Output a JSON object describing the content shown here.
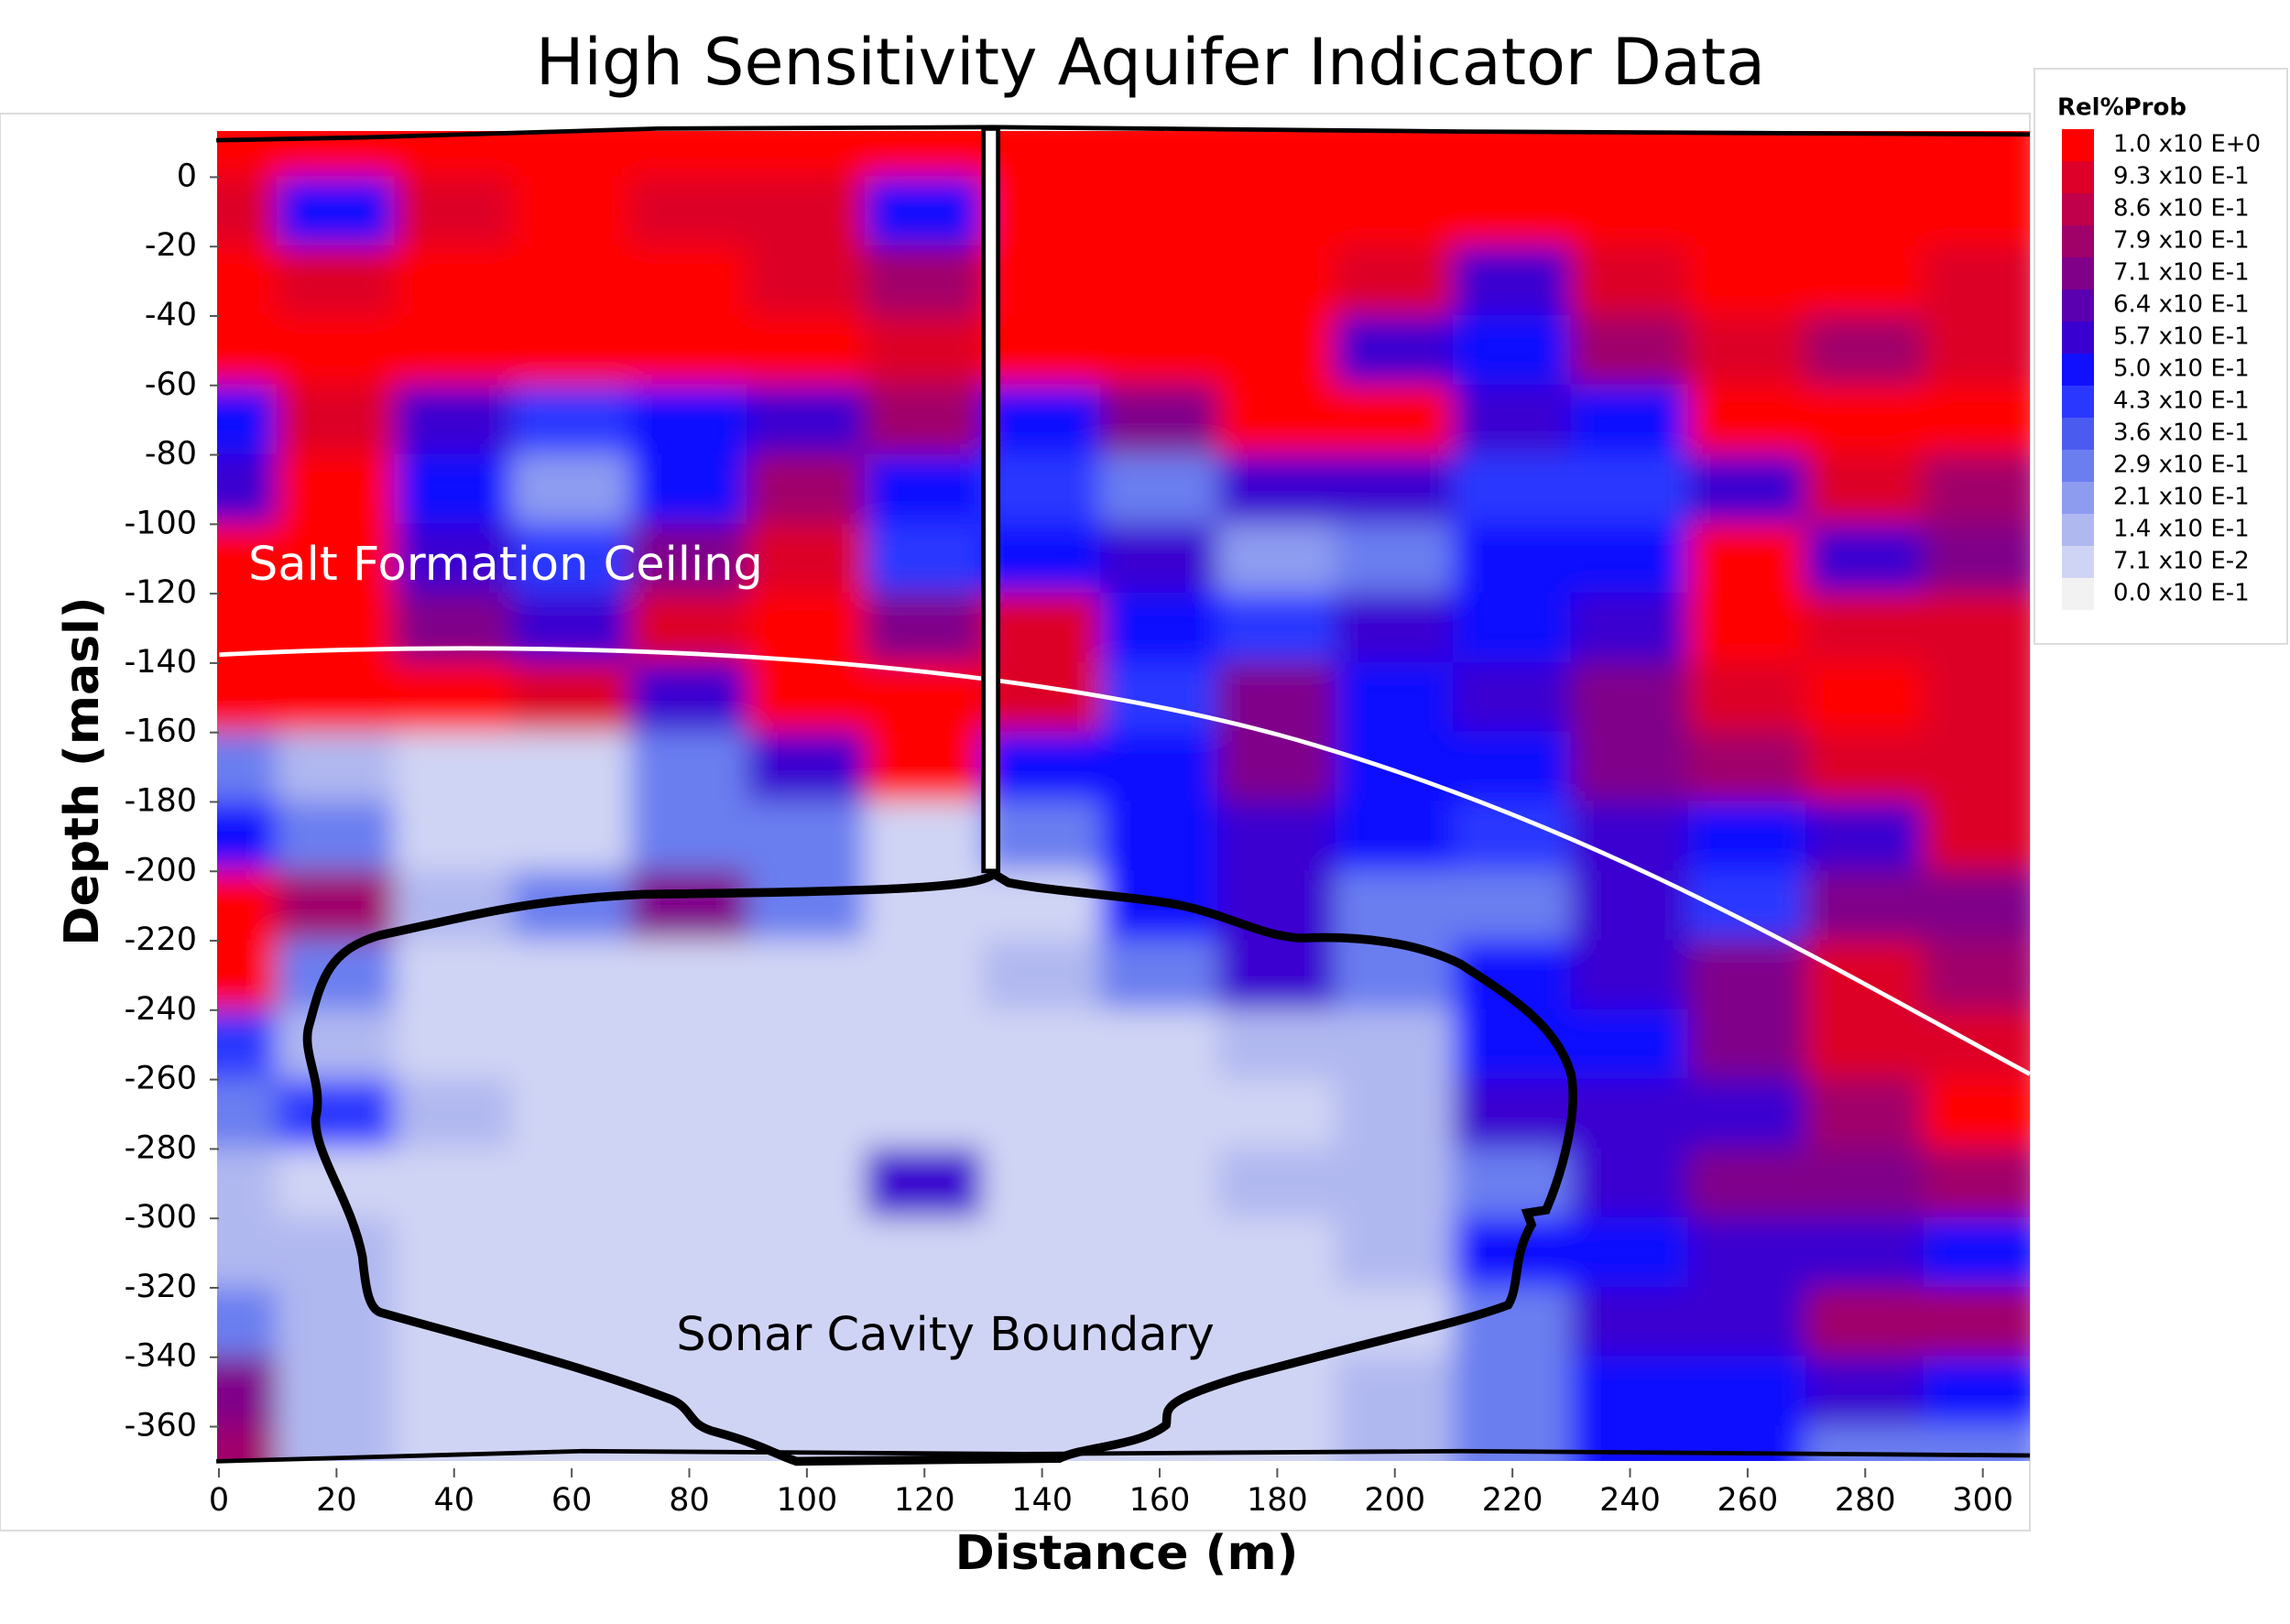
{
  "chart_data": {
    "type": "contour",
    "title": "High Sensitivity Aquifer Indicator Data",
    "x_label": "Distance (m)",
    "y_label": "Depth (masl)",
    "xlim": [
      0,
      308
    ],
    "ylim": [
      -372,
      17
    ],
    "xticks": [
      0,
      20,
      40,
      60,
      80,
      100,
      120,
      140,
      160,
      180,
      200,
      220,
      240,
      260,
      280,
      300
    ],
    "yticks": [
      0,
      -20,
      -40,
      -60,
      -80,
      -100,
      -120,
      -140,
      -160,
      -180,
      -200,
      -220,
      -240,
      -260,
      -280,
      -300,
      -320,
      -340,
      -360
    ],
    "x": [
      0,
      20,
      40,
      60,
      80,
      100,
      120,
      140,
      160,
      180,
      200,
      220,
      240,
      260,
      280,
      300
    ],
    "y": [
      10,
      -10,
      -30,
      -50,
      -70,
      -90,
      -110,
      -130,
      -150,
      -170,
      -190,
      -210,
      -230,
      -250,
      -270,
      -290,
      -310,
      -330,
      -350,
      -370
    ],
    "z": [
      [
        1,
        1,
        1,
        1,
        1,
        1,
        1,
        1,
        1,
        1,
        1,
        1,
        1,
        1,
        1,
        1
      ],
      [
        0.9,
        0.5,
        0.9,
        1,
        0.9,
        0.9,
        0.5,
        1,
        1,
        1,
        1,
        1,
        1,
        1,
        1,
        1
      ],
      [
        1,
        0.9,
        1,
        1,
        1,
        0.9,
        0.8,
        1,
        1,
        1,
        0.9,
        0.6,
        0.9,
        1,
        1,
        0.9
      ],
      [
        1,
        1,
        1,
        1,
        1,
        1,
        0.9,
        1,
        1,
        1,
        0.6,
        0.5,
        0.8,
        0.9,
        0.8,
        0.9
      ],
      [
        0.5,
        0.9,
        0.6,
        0.4,
        0.5,
        0.6,
        0.8,
        0.5,
        0.7,
        1,
        1,
        0.6,
        0.5,
        1,
        1,
        1
      ],
      [
        0.6,
        1,
        0.5,
        0.2,
        0.5,
        0.8,
        0.5,
        0.4,
        0.3,
        0.6,
        0.6,
        0.4,
        0.4,
        0.6,
        0.9,
        0.8
      ],
      [
        1,
        1,
        0.6,
        0.4,
        0.7,
        0.9,
        0.4,
        0.5,
        0.6,
        0.2,
        0.3,
        0.5,
        0.5,
        1,
        0.6,
        0.7
      ],
      [
        1,
        1,
        0.7,
        0.6,
        0.9,
        1,
        0.7,
        0.9,
        0.5,
        0.4,
        0.6,
        0.5,
        0.6,
        1,
        0.9,
        0.9
      ],
      [
        1,
        1,
        1,
        0.9,
        0.6,
        1,
        1,
        0.9,
        0.4,
        0.7,
        0.5,
        0.6,
        0.7,
        0.9,
        1,
        0.9
      ],
      [
        0.3,
        0.14,
        0.07,
        0.07,
        0.3,
        0.6,
        1,
        0.5,
        0.5,
        0.7,
        0.5,
        0.5,
        0.7,
        0.8,
        0.9,
        0.9
      ],
      [
        0.5,
        0.3,
        0.07,
        0.07,
        0.3,
        0.3,
        0.1,
        0.3,
        0.5,
        0.6,
        0.5,
        0.4,
        0.6,
        0.5,
        0.6,
        0.9
      ],
      [
        1,
        0.8,
        0.14,
        0.3,
        0.7,
        0.3,
        0.07,
        0.1,
        0.5,
        0.6,
        0.3,
        0.3,
        0.6,
        0.4,
        0.7,
        0.7
      ],
      [
        1,
        0.3,
        0.07,
        0.07,
        0.1,
        0.07,
        0.07,
        0.14,
        0.3,
        0.6,
        0.3,
        0.5,
        0.6,
        0.7,
        0.9,
        0.8
      ],
      [
        0.4,
        0.14,
        0.07,
        0.07,
        0.07,
        0.07,
        0.07,
        0.07,
        0.1,
        0.14,
        0.14,
        0.5,
        0.5,
        0.7,
        0.9,
        0.9
      ],
      [
        0.3,
        0.4,
        0.14,
        0.07,
        0.07,
        0.07,
        0.07,
        0.07,
        0.07,
        0.07,
        0.14,
        0.6,
        0.6,
        0.6,
        0.8,
        1
      ],
      [
        0.14,
        0.07,
        0.07,
        0.07,
        0.07,
        0.07,
        0.6,
        0.07,
        0.07,
        0.14,
        0.14,
        0.3,
        0.6,
        0.7,
        0.7,
        0.8
      ],
      [
        0.14,
        0.14,
        0.07,
        0.07,
        0.07,
        0.07,
        0.07,
        0.07,
        0.07,
        0.07,
        0.14,
        0.5,
        0.5,
        0.6,
        0.6,
        0.5
      ],
      [
        0.3,
        0.14,
        0.07,
        0.07,
        0.07,
        0.07,
        0.07,
        0.07,
        0.07,
        0.07,
        0.07,
        0.3,
        0.6,
        0.6,
        0.8,
        0.8
      ],
      [
        0.7,
        0.14,
        0.07,
        0.07,
        0.07,
        0.07,
        0.07,
        0.07,
        0.07,
        0.07,
        0.14,
        0.3,
        0.5,
        0.5,
        0.6,
        0.5
      ],
      [
        0.8,
        0.14,
        0.07,
        0.07,
        0.07,
        0.07,
        0.07,
        0.07,
        0.07,
        0.07,
        0.14,
        0.3,
        0.5,
        0.5,
        0.3,
        0.3
      ]
    ],
    "legend_title": "Rel%Prob",
    "levels": [
      {
        "value": 1.0,
        "label": "1.0 x10 E+0",
        "color": "#ff0000"
      },
      {
        "value": 0.93,
        "label": "9.3 x10 E-1",
        "color": "#dd0028"
      },
      {
        "value": 0.86,
        "label": "8.6 x10 E-1",
        "color": "#c0004a"
      },
      {
        "value": 0.79,
        "label": "7.9 x10 E-1",
        "color": "#a0006a"
      },
      {
        "value": 0.71,
        "label": "7.1 x10 E-1",
        "color": "#80008a"
      },
      {
        "value": 0.64,
        "label": "6.4 x10 E-1",
        "color": "#5a00b0"
      },
      {
        "value": 0.57,
        "label": "5.7 x10 E-1",
        "color": "#3a00d0"
      },
      {
        "value": 0.5,
        "label": "5.0 x10 E-1",
        "color": "#1010ff"
      },
      {
        "value": 0.43,
        "label": "4.3 x10 E-1",
        "color": "#2a38ff"
      },
      {
        "value": 0.36,
        "label": "3.6 x10 E-1",
        "color": "#4a5cf0"
      },
      {
        "value": 0.29,
        "label": "2.9 x10 E-1",
        "color": "#6a7ef0"
      },
      {
        "value": 0.21,
        "label": "2.1 x10 E-1",
        "color": "#8e9cf0"
      },
      {
        "value": 0.14,
        "label": "1.4 x10 E-1",
        "color": "#b0b8f0"
      },
      {
        "value": 0.071,
        "label": "7.1 x10 E-2",
        "color": "#d0d4f4"
      },
      {
        "value": 0.0,
        "label": "0.0 x10 E-1",
        "color": "#f2f2f2"
      }
    ],
    "annotations": [
      "Salt Formation Ceiling",
      "Sonar Cavity Boundary"
    ]
  }
}
